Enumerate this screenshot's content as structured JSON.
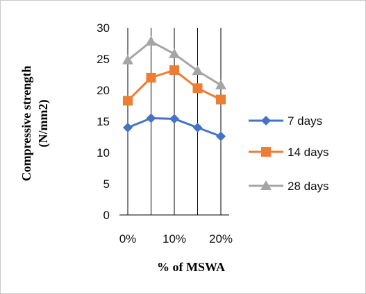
{
  "chart_data": {
    "type": "line",
    "categories": [
      "0%",
      "5%",
      "10%",
      "15%",
      "20%"
    ],
    "x_tick_labels": [
      "0%",
      "10%",
      "20%"
    ],
    "series": [
      {
        "name": "7 days",
        "values": [
          14.0,
          15.5,
          15.4,
          14.0,
          12.6
        ],
        "color": "#4472C4",
        "marker": "diamond"
      },
      {
        "name": "14 days",
        "values": [
          18.3,
          22.0,
          23.2,
          20.3,
          18.5
        ],
        "color": "#ED7D31",
        "marker": "square"
      },
      {
        "name": "28 days",
        "values": [
          24.8,
          27.8,
          25.8,
          23.1,
          20.8
        ],
        "color": "#A5A5A5",
        "marker": "triangle"
      }
    ],
    "xlabel": "% of MSWA",
    "ylabel": "Compressive strength (N/mm2)",
    "ylabel_lines": [
      "Compressive strength",
      "(N/mm2)"
    ],
    "ylim": [
      0,
      30
    ],
    "yticks": [
      0,
      5,
      10,
      15,
      20,
      25,
      30
    ],
    "grid": "vertical",
    "legend": "right"
  }
}
